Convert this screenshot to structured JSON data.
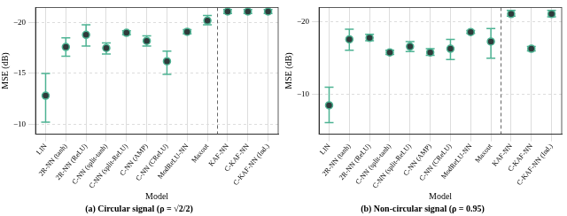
{
  "chart_data": [
    {
      "type": "scatter",
      "title": "(a) Circular signal (ρ = √2/2)",
      "x_label": "Model",
      "y_label": "MSE (dB)",
      "categories": [
        "LIN",
        "2R-NN (tanh)",
        "2R-NN (ReLU)",
        "C-NN (split-tanh)",
        "C-NN (split-ReLU)",
        "C-NN (AMP)",
        "C-NN (CReLU)",
        "ModReLU-NN",
        "Maxout",
        "KAF-NN",
        "C-KAF-NN",
        "C-KAF-NN (Ind.)"
      ],
      "values": [
        -12.8,
        -17.6,
        -18.8,
        -17.5,
        -19.0,
        -18.2,
        -16.2,
        -19.1,
        -20.2,
        -21.1,
        -21.1,
        -21.1
      ],
      "errors": [
        [
          -15.0,
          -10.2
        ],
        [
          -18.5,
          -16.7
        ],
        [
          -19.8,
          -17.7
        ],
        [
          -18.0,
          -16.9
        ],
        [
          -19.2,
          -18.8
        ],
        [
          -18.7,
          -17.7
        ],
        [
          -17.2,
          -14.9
        ],
        [
          -19.3,
          -18.9
        ],
        [
          -20.7,
          -19.8
        ],
        [
          -21.3,
          -20.9
        ],
        [
          -21.3,
          -20.9
        ],
        [
          -21.3,
          -20.9
        ]
      ],
      "color": "#4db393",
      "ylim": [
        -9,
        -21.5
      ],
      "yticks": [
        {
          "value": -20,
          "label": "−20"
        },
        {
          "value": -15,
          "label": "−15"
        },
        {
          "value": -10,
          "label": "−10"
        }
      ],
      "grid": true
    },
    {
      "type": "scatter",
      "title": "(b) Non-circular signal (ρ = 0.95)",
      "x_label": "Model",
      "y_label": "MSE (dB)",
      "categories": [
        "LIN",
        "2R-NN (tanh)",
        "2R-NN (ReLU)",
        "C-NN (split-tanh)",
        "C-NN (split-ReLU)",
        "C-NN (AMP)",
        "C-NN (CReLU)",
        "ModReLU-NN",
        "Maxout",
        "KAF-NN",
        "C-KAF-NN",
        "C-KAF-NN (Ind.)"
      ],
      "values": [
        -8.5,
        -17.6,
        -17.8,
        -15.8,
        -16.6,
        -15.8,
        -16.3,
        -18.6,
        -17.3,
        -21.1,
        -16.3,
        -21.1
      ],
      "errors": [
        [
          -11.0,
          -6.1
        ],
        [
          -19.0,
          -16.1
        ],
        [
          -18.3,
          -17.4
        ],
        [
          -16.1,
          -15.5
        ],
        [
          -17.3,
          -15.9
        ],
        [
          -16.3,
          -15.4
        ],
        [
          -17.6,
          -14.8
        ],
        [
          -18.8,
          -18.4
        ],
        [
          -19.1,
          -15.0
        ],
        [
          -21.6,
          -20.8
        ],
        [
          -16.6,
          -16.0
        ],
        [
          -21.6,
          -20.7
        ]
      ],
      "color": "#4db393",
      "ylim": [
        -4.5,
        -22
      ],
      "yticks": [
        {
          "value": -20,
          "label": "−20"
        },
        {
          "value": -10,
          "label": "−10"
        }
      ],
      "grid": true
    }
  ]
}
